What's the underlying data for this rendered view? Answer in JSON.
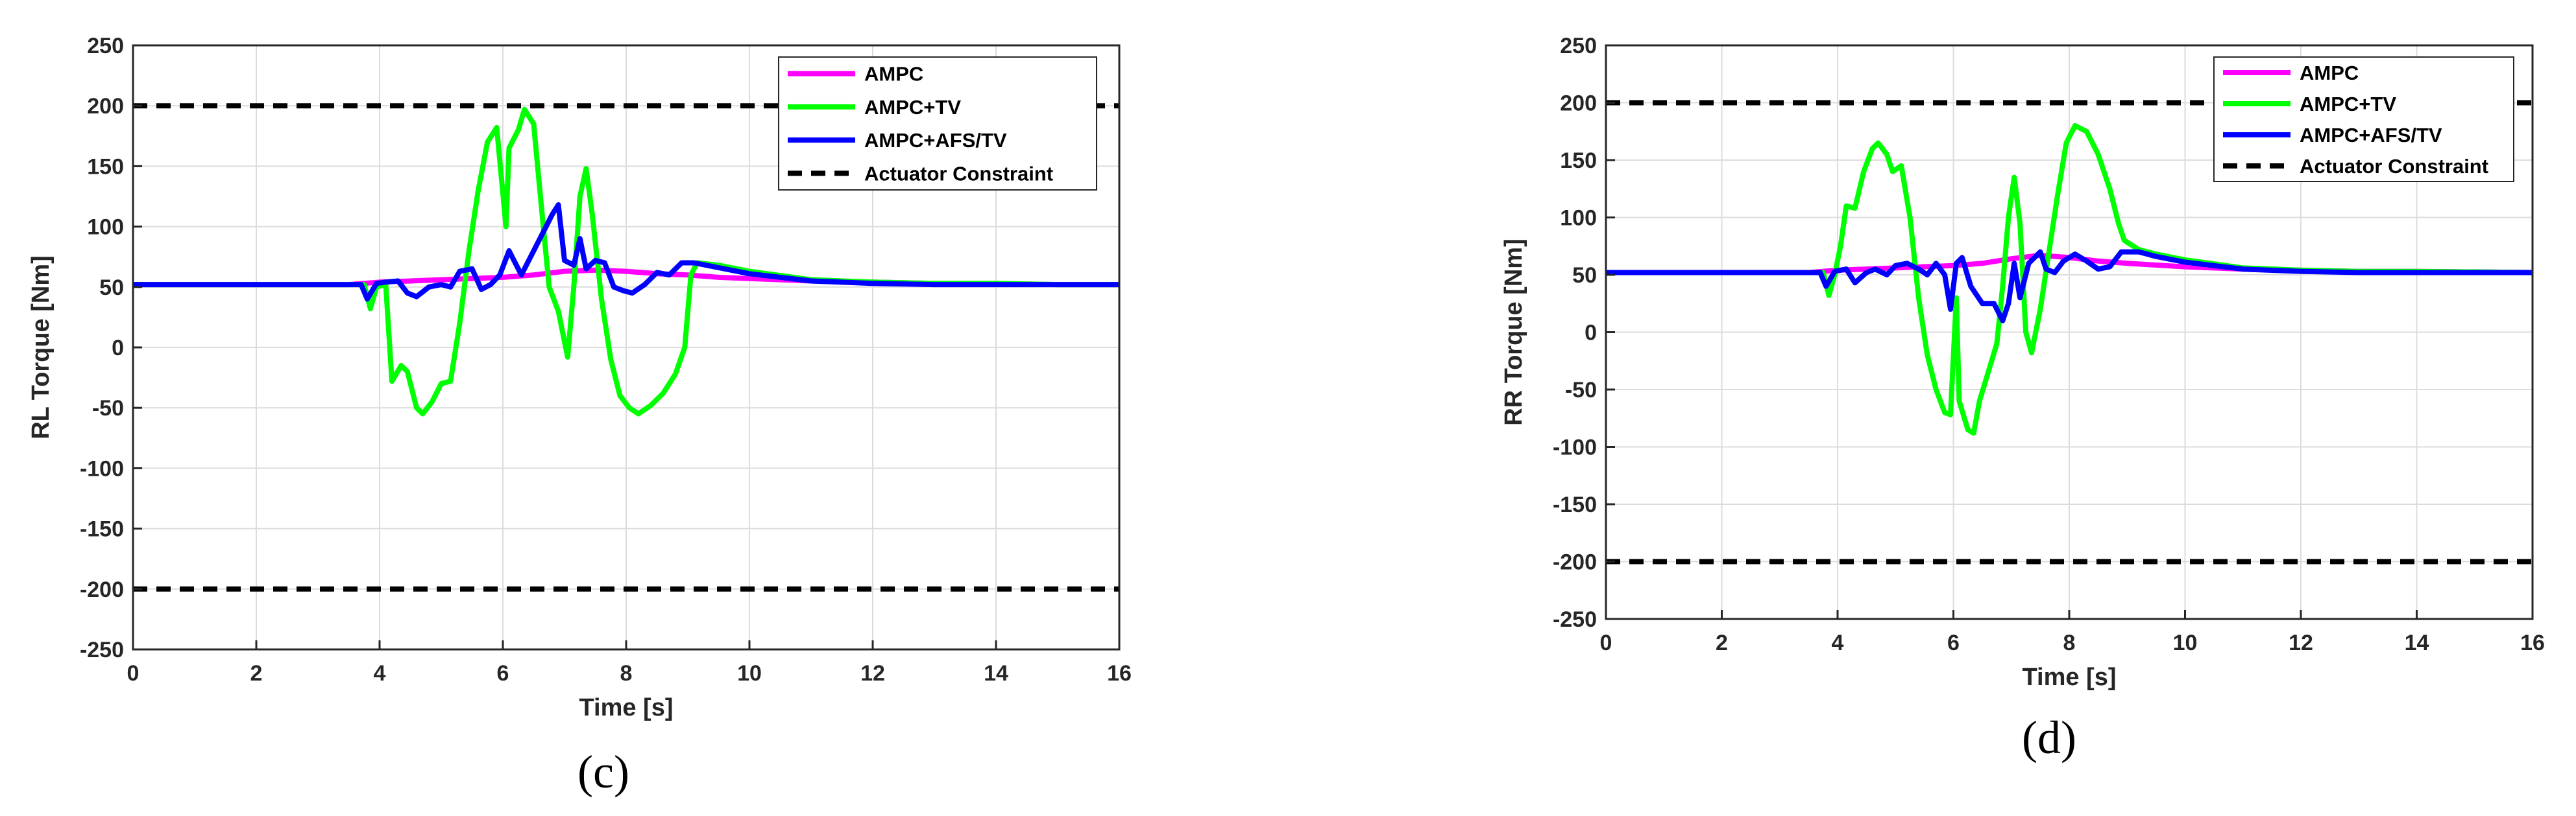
{
  "chart_data": [
    {
      "type": "line",
      "caption": "(c)",
      "xlabel": "Time [s]",
      "ylabel": "RL Torque [Nm]",
      "xlim": [
        0,
        16
      ],
      "ylim": [
        -250,
        250
      ],
      "xticks": [
        0,
        2,
        4,
        6,
        8,
        10,
        12,
        14,
        16
      ],
      "yticks": [
        -250,
        -200,
        -150,
        -100,
        -50,
        0,
        50,
        100,
        150,
        200,
        250
      ],
      "grid": true,
      "legend_position": "top-right",
      "series": [
        {
          "name": "AMPC",
          "color": "#ff00ff",
          "dash": "solid",
          "points": [
            [
              0,
              52
            ],
            [
              3.5,
              52
            ],
            [
              4.0,
              54
            ],
            [
              4.5,
              55
            ],
            [
              5.0,
              56
            ],
            [
              5.5,
              57
            ],
            [
              6.0,
              58
            ],
            [
              6.5,
              60
            ],
            [
              7.0,
              63
            ],
            [
              7.5,
              64
            ],
            [
              8.0,
              63
            ],
            [
              8.5,
              61
            ],
            [
              9.0,
              60
            ],
            [
              9.5,
              58
            ],
            [
              10.0,
              57
            ],
            [
              11.0,
              55
            ],
            [
              12.0,
              54
            ],
            [
              13.0,
              53
            ],
            [
              14.0,
              53
            ],
            [
              15.0,
              52
            ],
            [
              16.0,
              52
            ]
          ]
        },
        {
          "name": "AMPC+TV",
          "color": "#00ff00",
          "dash": "solid",
          "points": [
            [
              0,
              52
            ],
            [
              3.75,
              52
            ],
            [
              3.85,
              32
            ],
            [
              3.95,
              50
            ],
            [
              4.1,
              52
            ],
            [
              4.2,
              -28
            ],
            [
              4.35,
              -15
            ],
            [
              4.45,
              -20
            ],
            [
              4.6,
              -50
            ],
            [
              4.7,
              -55
            ],
            [
              4.85,
              -45
            ],
            [
              5.0,
              -30
            ],
            [
              5.15,
              -28
            ],
            [
              5.3,
              20
            ],
            [
              5.45,
              80
            ],
            [
              5.6,
              130
            ],
            [
              5.75,
              170
            ],
            [
              5.9,
              182
            ],
            [
              6.05,
              100
            ],
            [
              6.1,
              165
            ],
            [
              6.25,
              180
            ],
            [
              6.35,
              197
            ],
            [
              6.5,
              185
            ],
            [
              6.6,
              130
            ],
            [
              6.75,
              50
            ],
            [
              6.9,
              30
            ],
            [
              7.05,
              -8
            ],
            [
              7.15,
              50
            ],
            [
              7.25,
              125
            ],
            [
              7.35,
              148
            ],
            [
              7.45,
              110
            ],
            [
              7.6,
              40
            ],
            [
              7.75,
              -10
            ],
            [
              7.9,
              -40
            ],
            [
              8.05,
              -50
            ],
            [
              8.2,
              -55
            ],
            [
              8.4,
              -48
            ],
            [
              8.6,
              -38
            ],
            [
              8.8,
              -22
            ],
            [
              8.95,
              0
            ],
            [
              9.05,
              60
            ],
            [
              9.15,
              70
            ],
            [
              9.5,
              68
            ],
            [
              10.0,
              63
            ],
            [
              11.0,
              56
            ],
            [
              12.0,
              54
            ],
            [
              13.0,
              53
            ],
            [
              14.0,
              53
            ],
            [
              15.0,
              52
            ],
            [
              16.0,
              52
            ]
          ]
        },
        {
          "name": "AMPC+AFS/TV",
          "color": "#0000ff",
          "dash": "solid",
          "points": [
            [
              0,
              52
            ],
            [
              3.7,
              52
            ],
            [
              3.8,
              40
            ],
            [
              3.95,
              53
            ],
            [
              4.1,
              54
            ],
            [
              4.3,
              55
            ],
            [
              4.45,
              45
            ],
            [
              4.6,
              42
            ],
            [
              4.8,
              50
            ],
            [
              5.0,
              52
            ],
            [
              5.15,
              50
            ],
            [
              5.3,
              63
            ],
            [
              5.5,
              65
            ],
            [
              5.65,
              48
            ],
            [
              5.8,
              52
            ],
            [
              5.95,
              60
            ],
            [
              6.1,
              80
            ],
            [
              6.3,
              60
            ],
            [
              6.5,
              80
            ],
            [
              6.65,
              95
            ],
            [
              6.8,
              110
            ],
            [
              6.9,
              118
            ],
            [
              7.0,
              72
            ],
            [
              7.15,
              68
            ],
            [
              7.25,
              90
            ],
            [
              7.35,
              65
            ],
            [
              7.5,
              72
            ],
            [
              7.65,
              70
            ],
            [
              7.8,
              50
            ],
            [
              7.95,
              47
            ],
            [
              8.1,
              45
            ],
            [
              8.3,
              52
            ],
            [
              8.5,
              62
            ],
            [
              8.7,
              60
            ],
            [
              8.9,
              70
            ],
            [
              9.1,
              70
            ],
            [
              9.5,
              66
            ],
            [
              10.0,
              61
            ],
            [
              11.0,
              55
            ],
            [
              12.0,
              53
            ],
            [
              13.0,
              52
            ],
            [
              14.0,
              52
            ],
            [
              15.0,
              52
            ],
            [
              16.0,
              52
            ]
          ]
        },
        {
          "name": "Actuator Constraint",
          "color": "#000000",
          "dash": "dashed",
          "segments": [
            [
              [
                0,
                200
              ],
              [
                16,
                200
              ]
            ],
            [
              [
                0,
                -200
              ],
              [
                16,
                -200
              ]
            ]
          ]
        }
      ]
    },
    {
      "type": "line",
      "caption": "(d)",
      "xlabel": "Time [s]",
      "ylabel": "RR Torque [Nm]",
      "xlim": [
        0,
        16
      ],
      "ylim": [
        -250,
        250
      ],
      "xticks": [
        0,
        2,
        4,
        6,
        8,
        10,
        12,
        14,
        16
      ],
      "yticks": [
        -250,
        -200,
        -150,
        -100,
        -50,
        0,
        50,
        100,
        150,
        200,
        250
      ],
      "grid": true,
      "legend_position": "top-right",
      "series": [
        {
          "name": "AMPC",
          "color": "#ff00ff",
          "dash": "solid",
          "points": [
            [
              0,
              52
            ],
            [
              3.5,
              52
            ],
            [
              4.0,
              54
            ],
            [
              5.0,
              56
            ],
            [
              6.0,
              58
            ],
            [
              6.5,
              60
            ],
            [
              7.0,
              64
            ],
            [
              7.5,
              67
            ],
            [
              8.0,
              65
            ],
            [
              8.5,
              62
            ],
            [
              9.0,
              60
            ],
            [
              10.0,
              57
            ],
            [
              11.0,
              55
            ],
            [
              12.0,
              54
            ],
            [
              13.0,
              53
            ],
            [
              14.0,
              53
            ],
            [
              16.0,
              52
            ]
          ]
        },
        {
          "name": "AMPC+TV",
          "color": "#00ff00",
          "dash": "solid",
          "points": [
            [
              0,
              52
            ],
            [
              3.75,
              52
            ],
            [
              3.85,
              32
            ],
            [
              3.95,
              50
            ],
            [
              4.05,
              75
            ],
            [
              4.15,
              110
            ],
            [
              4.3,
              108
            ],
            [
              4.45,
              140
            ],
            [
              4.6,
              160
            ],
            [
              4.7,
              165
            ],
            [
              4.85,
              155
            ],
            [
              4.95,
              140
            ],
            [
              5.1,
              145
            ],
            [
              5.25,
              100
            ],
            [
              5.4,
              30
            ],
            [
              5.55,
              -20
            ],
            [
              5.7,
              -50
            ],
            [
              5.85,
              -70
            ],
            [
              5.95,
              -72
            ],
            [
              6.05,
              30
            ],
            [
              6.1,
              -60
            ],
            [
              6.25,
              -85
            ],
            [
              6.35,
              -88
            ],
            [
              6.45,
              -60
            ],
            [
              6.6,
              -35
            ],
            [
              6.75,
              -10
            ],
            [
              6.85,
              40
            ],
            [
              6.95,
              100
            ],
            [
              7.05,
              135
            ],
            [
              7.15,
              95
            ],
            [
              7.25,
              0
            ],
            [
              7.35,
              -18
            ],
            [
              7.5,
              20
            ],
            [
              7.65,
              70
            ],
            [
              7.8,
              120
            ],
            [
              7.95,
              165
            ],
            [
              8.1,
              180
            ],
            [
              8.3,
              175
            ],
            [
              8.5,
              155
            ],
            [
              8.7,
              125
            ],
            [
              8.85,
              95
            ],
            [
              8.95,
              80
            ],
            [
              9.2,
              72
            ],
            [
              9.5,
              68
            ],
            [
              10.0,
              63
            ],
            [
              11.0,
              56
            ],
            [
              12.0,
              54
            ],
            [
              13.0,
              53
            ],
            [
              14.0,
              53
            ],
            [
              16.0,
              52
            ]
          ]
        },
        {
          "name": "AMPC+AFS/TV",
          "color": "#0000ff",
          "dash": "solid",
          "points": [
            [
              0,
              52
            ],
            [
              3.7,
              52
            ],
            [
              3.8,
              40
            ],
            [
              3.95,
              53
            ],
            [
              4.15,
              55
            ],
            [
              4.3,
              43
            ],
            [
              4.5,
              52
            ],
            [
              4.65,
              55
            ],
            [
              4.85,
              50
            ],
            [
              5.0,
              58
            ],
            [
              5.2,
              60
            ],
            [
              5.4,
              55
            ],
            [
              5.55,
              50
            ],
            [
              5.7,
              60
            ],
            [
              5.85,
              50
            ],
            [
              5.95,
              20
            ],
            [
              6.05,
              60
            ],
            [
              6.15,
              65
            ],
            [
              6.3,
              40
            ],
            [
              6.5,
              25
            ],
            [
              6.7,
              25
            ],
            [
              6.85,
              10
            ],
            [
              6.95,
              25
            ],
            [
              7.05,
              60
            ],
            [
              7.15,
              30
            ],
            [
              7.3,
              60
            ],
            [
              7.5,
              70
            ],
            [
              7.6,
              55
            ],
            [
              7.75,
              52
            ],
            [
              7.9,
              62
            ],
            [
              8.1,
              68
            ],
            [
              8.3,
              62
            ],
            [
              8.5,
              55
            ],
            [
              8.7,
              57
            ],
            [
              8.9,
              70
            ],
            [
              9.2,
              70
            ],
            [
              9.5,
              66
            ],
            [
              10.0,
              61
            ],
            [
              11.0,
              55
            ],
            [
              12.0,
              53
            ],
            [
              13.0,
              52
            ],
            [
              14.0,
              52
            ],
            [
              16.0,
              52
            ]
          ]
        },
        {
          "name": "Actuator Constraint",
          "color": "#000000",
          "dash": "dashed",
          "segments": [
            [
              [
                0,
                200
              ],
              [
                16,
                200
              ]
            ],
            [
              [
                0,
                -200
              ],
              [
                16,
                -200
              ]
            ]
          ]
        }
      ]
    }
  ]
}
